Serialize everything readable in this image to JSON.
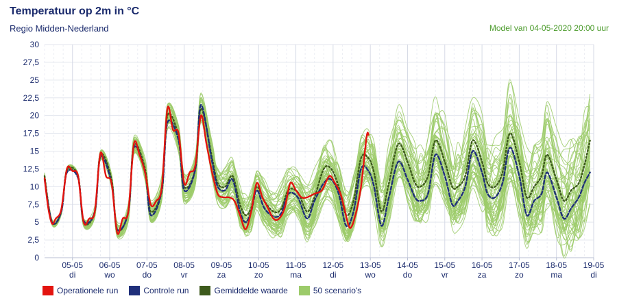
{
  "title": "Temperatuur op 2m in °C",
  "subtitle": "Regio Midden-Nederland",
  "model_note": "Model van 04-05-2020 20:00 uur",
  "legend": [
    {
      "label": "Operationele run",
      "color": "#e3140f"
    },
    {
      "label": "Controle run",
      "color": "#1f2f7a"
    },
    {
      "label": "Gemiddelde waarde",
      "color": "#3d5a1c"
    },
    {
      "label": "50 scenario's",
      "color": "#9ccb6a"
    }
  ],
  "chart_data": {
    "type": "line",
    "ylim": [
      0,
      30
    ],
    "yticks": [
      "0",
      "2,5",
      "5",
      "7,5",
      "10",
      "12,5",
      "15",
      "17,5",
      "20",
      "22,5",
      "25",
      "27,5",
      "30"
    ],
    "x_days": [
      {
        "date": "05-05",
        "weekday": "di"
      },
      {
        "date": "06-05",
        "weekday": "wo"
      },
      {
        "date": "07-05",
        "weekday": "do"
      },
      {
        "date": "08-05",
        "weekday": "vr"
      },
      {
        "date": "09-05",
        "weekday": "za"
      },
      {
        "date": "10-05",
        "weekday": "zo"
      },
      {
        "date": "11-05",
        "weekday": "ma"
      },
      {
        "date": "12-05",
        "weekday": "di"
      },
      {
        "date": "13-05",
        "weekday": "wo"
      },
      {
        "date": "14-05",
        "weekday": "do"
      },
      {
        "date": "15-05",
        "weekday": "vr"
      },
      {
        "date": "16-05",
        "weekday": "za"
      },
      {
        "date": "17-05",
        "weekday": "zo"
      },
      {
        "date": "18-05",
        "weekday": "ma"
      },
      {
        "date": "19-05",
        "weekday": "di"
      }
    ],
    "x_range_days": [
      0,
      14.5
    ],
    "grid": true,
    "legend_position": "bottom-left",
    "series": [
      {
        "name": "Operationele run",
        "color": "#e3140f",
        "style": "solid",
        "points": [
          [
            -0.75,
            11.2
          ],
          [
            -0.65,
            7
          ],
          [
            -0.55,
            4.8
          ],
          [
            -0.45,
            5.5
          ],
          [
            -0.3,
            6.8
          ],
          [
            -0.15,
            12.5
          ],
          [
            0,
            12.2
          ],
          [
            0.15,
            11.5
          ],
          [
            0.3,
            5
          ],
          [
            0.45,
            5.5
          ],
          [
            0.6,
            6.5
          ],
          [
            0.75,
            14.7
          ],
          [
            0.9,
            11.5
          ],
          [
            1.05,
            10.5
          ],
          [
            1.2,
            3.5
          ],
          [
            1.35,
            5.5
          ],
          [
            1.5,
            6.5
          ],
          [
            1.65,
            16
          ],
          [
            1.8,
            14.5
          ],
          [
            1.95,
            12
          ],
          [
            2.1,
            7.5
          ],
          [
            2.25,
            8
          ],
          [
            2.4,
            10
          ],
          [
            2.55,
            21
          ],
          [
            2.7,
            18
          ],
          [
            2.85,
            17.5
          ],
          [
            3.0,
            10.5
          ],
          [
            3.15,
            12
          ],
          [
            3.3,
            13
          ],
          [
            3.45,
            20
          ],
          [
            3.6,
            16
          ],
          [
            3.75,
            12
          ],
          [
            3.9,
            9
          ],
          [
            4.05,
            8.5
          ],
          [
            4.2,
            8.5
          ],
          [
            4.35,
            8
          ],
          [
            4.5,
            6
          ],
          [
            4.65,
            4
          ],
          [
            4.8,
            6.5
          ],
          [
            4.95,
            10.5
          ],
          [
            5.1,
            8.5
          ],
          [
            5.25,
            7
          ],
          [
            5.4,
            5.5
          ],
          [
            5.55,
            5.5
          ],
          [
            5.7,
            7
          ],
          [
            5.85,
            10.5
          ],
          [
            6.0,
            9.5
          ],
          [
            6.15,
            8.5
          ],
          [
            6.3,
            8.5
          ],
          [
            6.5,
            9
          ],
          [
            6.7,
            9.5
          ],
          [
            6.9,
            11.5
          ],
          [
            7.05,
            10.5
          ],
          [
            7.2,
            9
          ],
          [
            7.3,
            7
          ],
          [
            7.45,
            4.2
          ],
          [
            7.6,
            6
          ],
          [
            7.75,
            10
          ],
          [
            7.9,
            17
          ],
          [
            7.95,
            17.3
          ]
        ]
      },
      {
        "name": "Controle run",
        "color": "#1f2f7a",
        "style": "dashed",
        "points": [
          [
            -0.75,
            11
          ],
          [
            -0.55,
            5
          ],
          [
            -0.3,
            6.5
          ],
          [
            -0.15,
            12
          ],
          [
            0.15,
            11.2
          ],
          [
            0.3,
            5.2
          ],
          [
            0.6,
            6.5
          ],
          [
            0.75,
            14.2
          ],
          [
            1.05,
            10.5
          ],
          [
            1.2,
            4
          ],
          [
            1.5,
            6.5
          ],
          [
            1.65,
            15.5
          ],
          [
            1.95,
            12
          ],
          [
            2.1,
            6
          ],
          [
            2.4,
            9.5
          ],
          [
            2.55,
            19
          ],
          [
            2.85,
            16.5
          ],
          [
            3.0,
            9.5
          ],
          [
            3.3,
            12.5
          ],
          [
            3.45,
            21.5
          ],
          [
            3.75,
            13.5
          ],
          [
            3.9,
            10
          ],
          [
            4.1,
            9.5
          ],
          [
            4.3,
            11
          ],
          [
            4.5,
            6.5
          ],
          [
            4.65,
            5
          ],
          [
            4.8,
            6.5
          ],
          [
            4.95,
            9.5
          ],
          [
            5.15,
            7
          ],
          [
            5.4,
            5.8
          ],
          [
            5.6,
            6.2
          ],
          [
            5.8,
            9
          ],
          [
            6.05,
            8.5
          ],
          [
            6.3,
            5.5
          ],
          [
            6.5,
            8
          ],
          [
            6.75,
            10.5
          ],
          [
            6.95,
            11
          ],
          [
            7.15,
            9
          ],
          [
            7.35,
            4.5
          ],
          [
            7.55,
            6.5
          ],
          [
            7.75,
            12.5
          ],
          [
            7.95,
            12.2
          ],
          [
            8.1,
            10
          ],
          [
            8.3,
            4.5
          ],
          [
            8.5,
            8.5
          ],
          [
            8.75,
            13.5
          ],
          [
            9.0,
            11
          ],
          [
            9.2,
            8.5
          ],
          [
            9.35,
            8
          ],
          [
            9.55,
            9
          ],
          [
            9.75,
            14.5
          ],
          [
            10.0,
            11.5
          ],
          [
            10.2,
            7.5
          ],
          [
            10.35,
            8
          ],
          [
            10.55,
            10
          ],
          [
            10.75,
            15
          ],
          [
            11.0,
            12
          ],
          [
            11.15,
            9
          ],
          [
            11.35,
            8.5
          ],
          [
            11.55,
            10.5
          ],
          [
            11.75,
            15.5
          ],
          [
            12.0,
            11.5
          ],
          [
            12.2,
            6
          ],
          [
            12.4,
            8
          ],
          [
            12.6,
            9
          ],
          [
            12.75,
            12
          ],
          [
            13.0,
            8.5
          ],
          [
            13.2,
            5.5
          ],
          [
            13.4,
            7
          ],
          [
            13.6,
            8.5
          ],
          [
            13.75,
            10.5
          ],
          [
            13.9,
            12
          ]
        ]
      },
      {
        "name": "Gemiddelde waarde",
        "color": "#3d5a1c",
        "style": "dotted",
        "points": [
          [
            -0.75,
            11.5
          ],
          [
            -0.55,
            5
          ],
          [
            -0.3,
            6.5
          ],
          [
            -0.15,
            12.3
          ],
          [
            0.15,
            11.5
          ],
          [
            0.3,
            5
          ],
          [
            0.6,
            6.5
          ],
          [
            0.75,
            14.5
          ],
          [
            1.05,
            11
          ],
          [
            1.2,
            4
          ],
          [
            1.5,
            6.5
          ],
          [
            1.65,
            15.8
          ],
          [
            1.95,
            12.5
          ],
          [
            2.1,
            6.5
          ],
          [
            2.4,
            9.8
          ],
          [
            2.55,
            20
          ],
          [
            2.85,
            17
          ],
          [
            3.0,
            10
          ],
          [
            3.3,
            12.5
          ],
          [
            3.45,
            21
          ],
          [
            3.75,
            14
          ],
          [
            3.9,
            10.5
          ],
          [
            4.1,
            10
          ],
          [
            4.3,
            11.5
          ],
          [
            4.5,
            7.5
          ],
          [
            4.65,
            6
          ],
          [
            4.8,
            7
          ],
          [
            4.95,
            10
          ],
          [
            5.15,
            8
          ],
          [
            5.4,
            6.5
          ],
          [
            5.6,
            6.8
          ],
          [
            5.8,
            9.5
          ],
          [
            6.05,
            9.2
          ],
          [
            6.3,
            6.5
          ],
          [
            6.5,
            8.5
          ],
          [
            6.75,
            12.5
          ],
          [
            6.95,
            12.5
          ],
          [
            7.15,
            10
          ],
          [
            7.35,
            6
          ],
          [
            7.55,
            8
          ],
          [
            7.75,
            14
          ],
          [
            7.95,
            14
          ],
          [
            8.1,
            12
          ],
          [
            8.3,
            6.5
          ],
          [
            8.5,
            10.5
          ],
          [
            8.75,
            16
          ],
          [
            9.0,
            13.5
          ],
          [
            9.2,
            10.5
          ],
          [
            9.35,
            10
          ],
          [
            9.55,
            11.5
          ],
          [
            9.75,
            16.5
          ],
          [
            10.0,
            13.5
          ],
          [
            10.2,
            10
          ],
          [
            10.35,
            10
          ],
          [
            10.55,
            11.5
          ],
          [
            10.75,
            16.5
          ],
          [
            11.0,
            13.5
          ],
          [
            11.15,
            10.5
          ],
          [
            11.35,
            10
          ],
          [
            11.55,
            12
          ],
          [
            11.75,
            17.5
          ],
          [
            12.0,
            13.5
          ],
          [
            12.2,
            8.5
          ],
          [
            12.4,
            10
          ],
          [
            12.6,
            11.5
          ],
          [
            12.75,
            14.5
          ],
          [
            13.0,
            11
          ],
          [
            13.2,
            8
          ],
          [
            13.4,
            9.5
          ],
          [
            13.6,
            10.5
          ],
          [
            13.75,
            13
          ],
          [
            13.9,
            16.5
          ]
        ]
      }
    ],
    "ensemble_members": 50
  }
}
